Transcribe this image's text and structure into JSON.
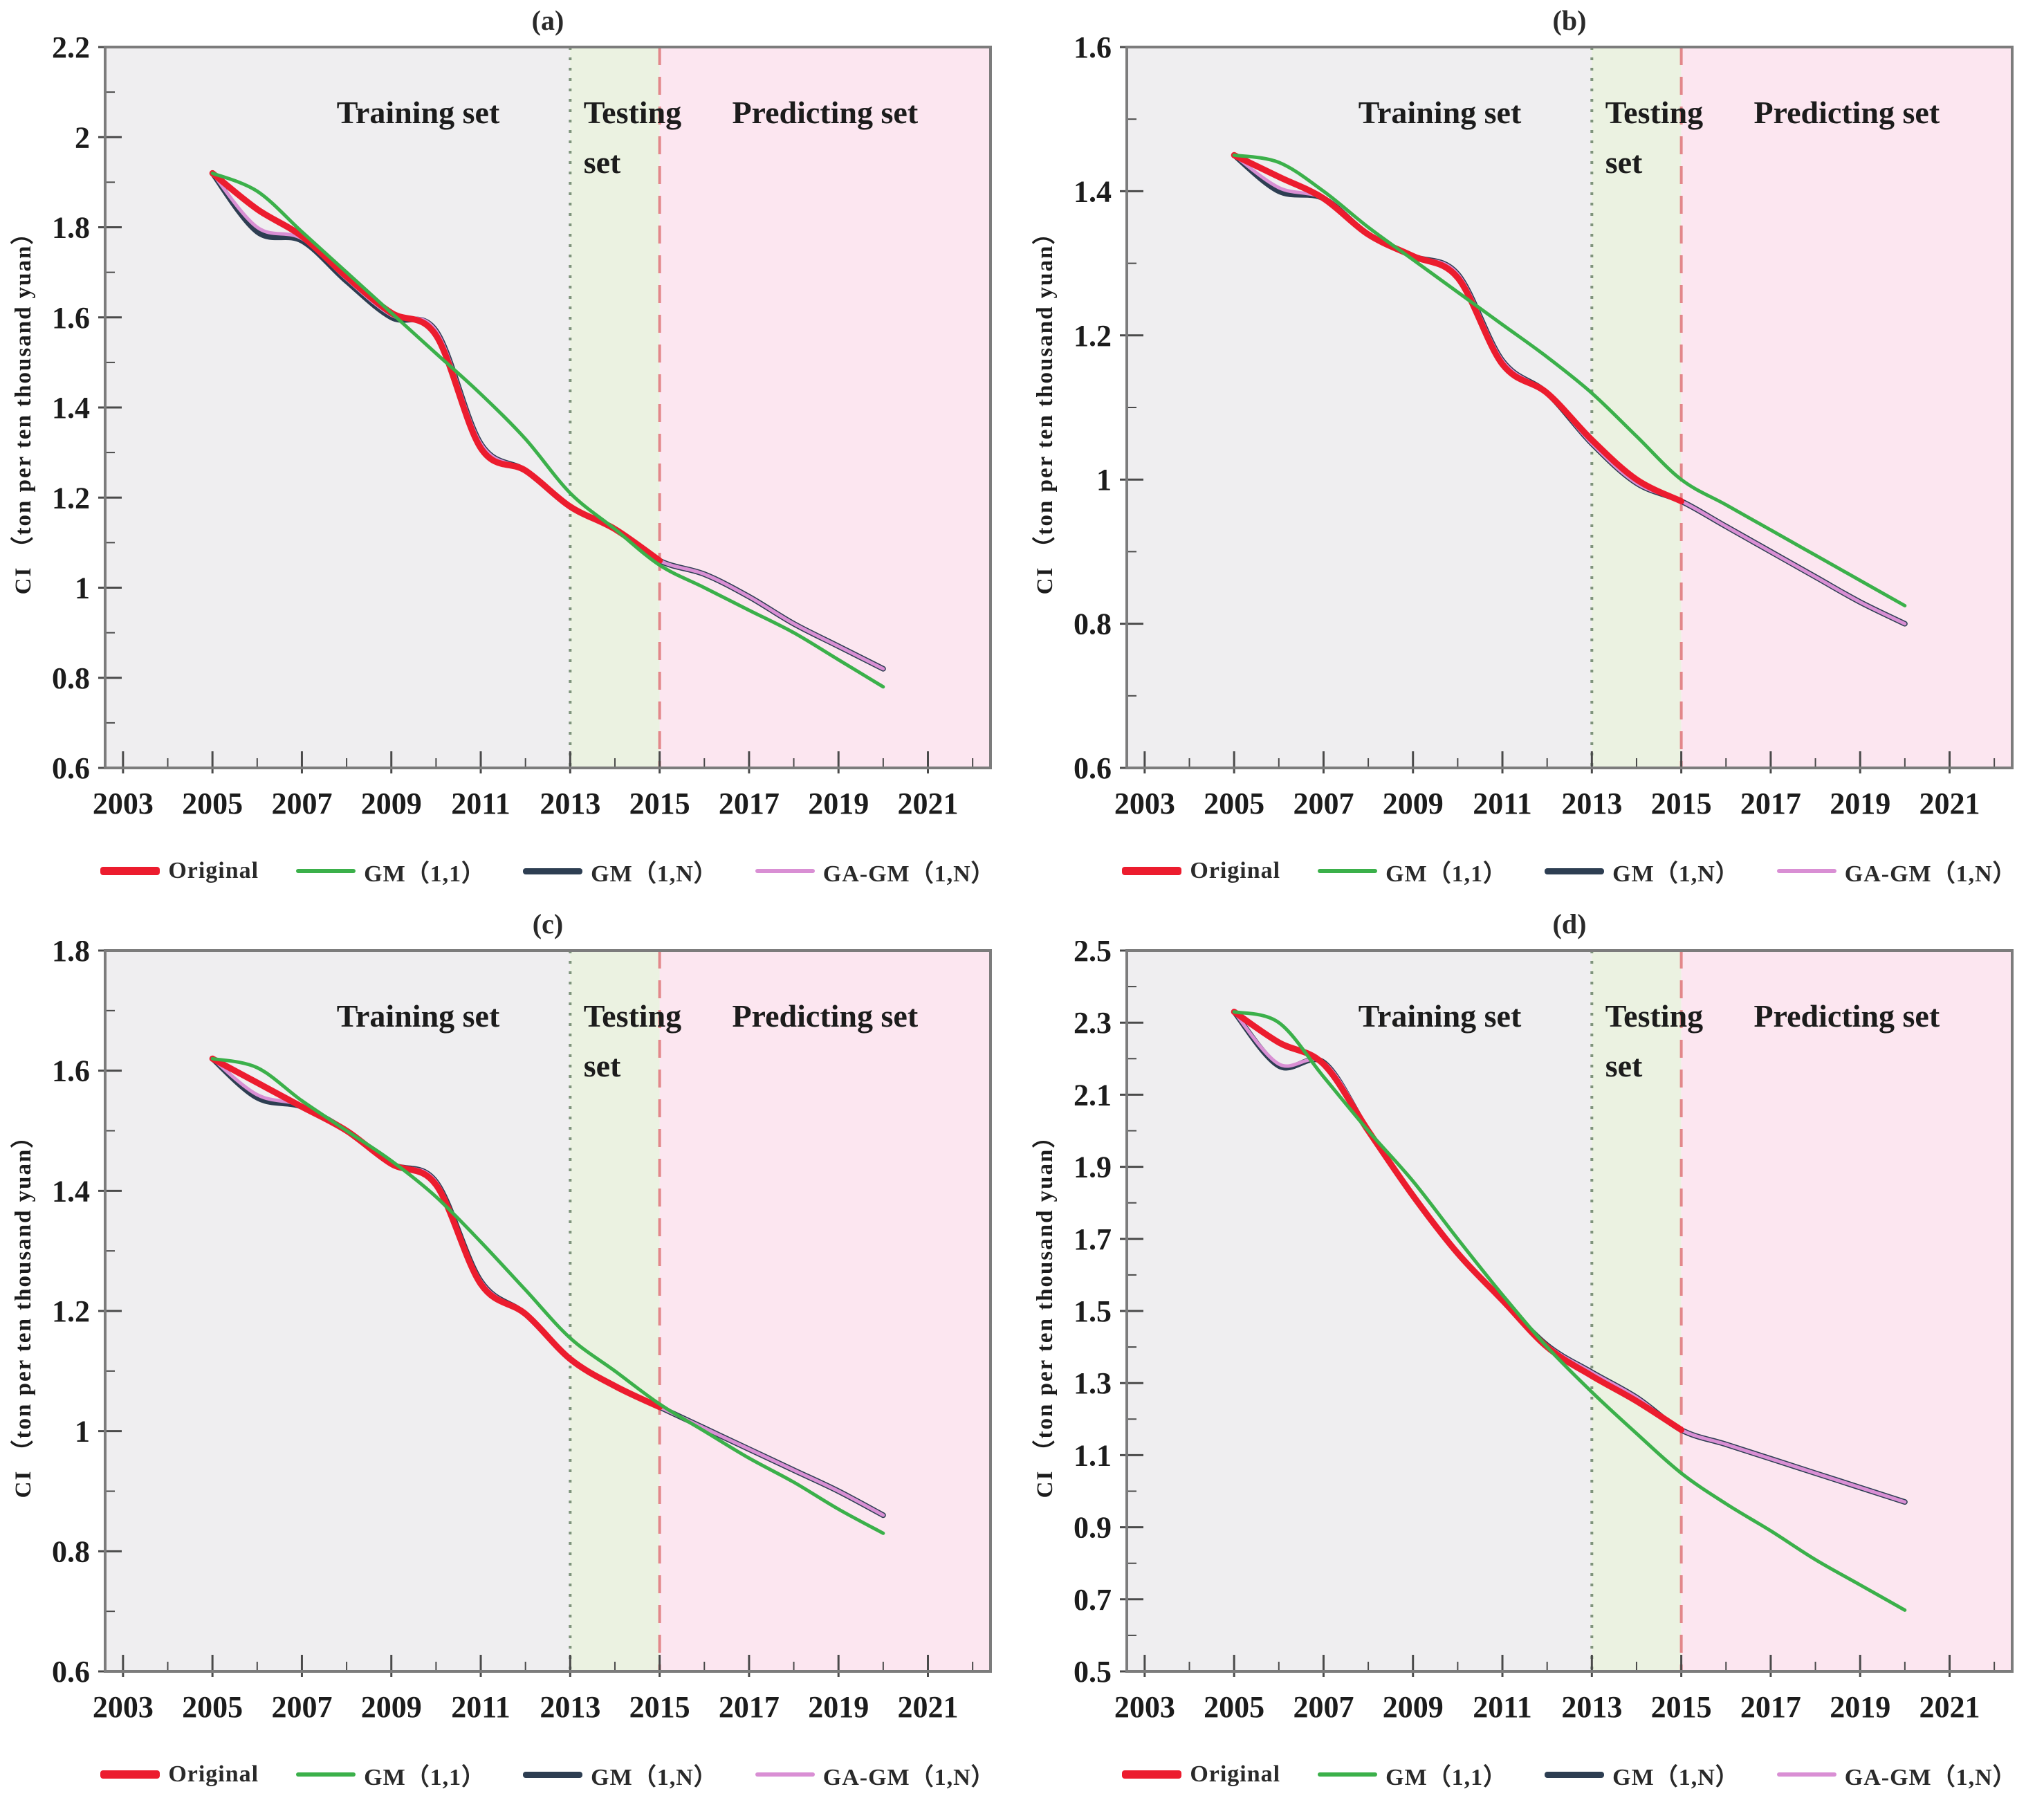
{
  "figure": {
    "region_labels": {
      "training": "Training set",
      "testing": [
        "Testing",
        "set"
      ],
      "predicting": "Predicting set"
    },
    "colors": {
      "plot_border": "#7c7c7c",
      "tick": "#4a4a4a",
      "text": "#1c1c1c",
      "region_training": "#efeef0",
      "region_testing": "#ebf2e1",
      "region_predicting": "#fce6f0",
      "divider_testing": "#7f947c",
      "divider_predicting": "#e2878a",
      "series_original": "#ec1c2e",
      "series_gm11": "#3bb04a",
      "series_gm1n": "#2d3e52",
      "series_gagm1n": "#d98fd4"
    }
  },
  "chart_data": [
    {
      "type": "line",
      "title": "(a)",
      "xlabel": "",
      "ylabel": "CI （ton per ten thousand yuan）",
      "xlim": [
        2002.6,
        2022.4
      ],
      "ylim": [
        0.6,
        2.2
      ],
      "y_major_step": 0.2,
      "y_minor_step": 0.1,
      "x_tick_labels": [
        "2003",
        "2005",
        "2007",
        "2009",
        "2011",
        "2013",
        "2015",
        "2017",
        "2019",
        "2021"
      ],
      "grid": false,
      "legend_position": "bottom",
      "regions": [
        {
          "name": "training",
          "from": 2002.6,
          "to": 2013,
          "label": "Training set",
          "label_x": 2009.6,
          "label_align": "middle"
        },
        {
          "name": "testing",
          "from": 2013,
          "to": 2015,
          "label_lines": [
            "Testing",
            "set"
          ],
          "label_x": 2013.3,
          "label_align": "start"
        },
        {
          "name": "predicting",
          "from": 2015,
          "to": 2022.4,
          "label": "Predicting set",
          "label_x": 2018.7,
          "label_align": "middle"
        }
      ],
      "dividers": [
        {
          "x": 2013,
          "style": "dotted"
        },
        {
          "x": 2015,
          "style": "dashed"
        }
      ],
      "x": [
        2005,
        2006,
        2007,
        2008,
        2009,
        2010,
        2011,
        2012,
        2013,
        2014,
        2015,
        2016,
        2017,
        2018,
        2019,
        2020
      ],
      "series": [
        {
          "key": "original",
          "name": "Original",
          "z": 3,
          "width": 9,
          "values": [
            1.92,
            1.84,
            1.78,
            1.69,
            1.61,
            1.56,
            1.31,
            1.26,
            1.18,
            1.13,
            1.06
          ]
        },
        {
          "key": "gm11",
          "name": "GM（1,1）",
          "z": 4,
          "width": 5,
          "values": [
            1.92,
            1.88,
            1.79,
            1.7,
            1.61,
            1.52,
            1.43,
            1.33,
            1.21,
            1.13,
            1.05,
            1.0,
            0.95,
            0.9,
            0.84,
            0.78
          ]
        },
        {
          "key": "gm1n",
          "name": "GM（1,N）",
          "z": 1,
          "width": 8,
          "values": [
            1.92,
            1.79,
            1.77,
            1.68,
            1.6,
            1.57,
            1.32,
            1.26,
            1.18,
            1.13,
            1.06,
            1.03,
            0.98,
            0.92,
            0.87,
            0.82
          ]
        },
        {
          "key": "gagm1n",
          "name": "GA-GM（1,N）",
          "z": 2,
          "width": 5,
          "values": [
            1.92,
            1.8,
            1.775,
            1.685,
            1.605,
            1.57,
            1.32,
            1.26,
            1.18,
            1.13,
            1.06,
            1.03,
            0.98,
            0.92,
            0.87,
            0.82
          ]
        }
      ]
    },
    {
      "type": "line",
      "title": "(b)",
      "xlabel": "",
      "ylabel": "CI （ton per ten thousand yuan）",
      "xlim": [
        2002.6,
        2022.4
      ],
      "ylim": [
        0.6,
        1.6
      ],
      "y_major_step": 0.2,
      "y_minor_step": 0.1,
      "x_tick_labels": [
        "2003",
        "2005",
        "2007",
        "2009",
        "2011",
        "2013",
        "2015",
        "2017",
        "2019",
        "2021"
      ],
      "grid": false,
      "legend_position": "bottom",
      "regions": [
        {
          "name": "training",
          "from": 2002.6,
          "to": 2013,
          "label": "Training set",
          "label_x": 2009.6,
          "label_align": "middle"
        },
        {
          "name": "testing",
          "from": 2013,
          "to": 2015,
          "label_lines": [
            "Testing",
            "set"
          ],
          "label_x": 2013.3,
          "label_align": "start"
        },
        {
          "name": "predicting",
          "from": 2015,
          "to": 2022.4,
          "label": "Predicting set",
          "label_x": 2018.7,
          "label_align": "middle"
        }
      ],
      "dividers": [
        {
          "x": 2013,
          "style": "dotted"
        },
        {
          "x": 2015,
          "style": "dashed"
        }
      ],
      "x": [
        2005,
        2006,
        2007,
        2008,
        2009,
        2010,
        2011,
        2012,
        2013,
        2014,
        2015,
        2016,
        2017,
        2018,
        2019,
        2020
      ],
      "series": [
        {
          "key": "original",
          "name": "Original",
          "z": 3,
          "width": 9,
          "values": [
            1.45,
            1.42,
            1.39,
            1.34,
            1.31,
            1.28,
            1.16,
            1.12,
            1.055,
            1.0,
            0.97
          ]
        },
        {
          "key": "gm11",
          "name": "GM（1,1）",
          "z": 4,
          "width": 5,
          "values": [
            1.45,
            1.44,
            1.4,
            1.35,
            1.305,
            1.26,
            1.215,
            1.17,
            1.12,
            1.06,
            1.0,
            0.965,
            0.93,
            0.895,
            0.86,
            0.825
          ]
        },
        {
          "key": "gm1n",
          "name": "GM（1,N）",
          "z": 1,
          "width": 8,
          "values": [
            1.45,
            1.4,
            1.39,
            1.34,
            1.31,
            1.285,
            1.165,
            1.12,
            1.05,
            0.995,
            0.97,
            0.935,
            0.9,
            0.865,
            0.83,
            0.8
          ]
        },
        {
          "key": "gagm1n",
          "name": "GA-GM（1,N）",
          "z": 2,
          "width": 5,
          "values": [
            1.45,
            1.405,
            1.39,
            1.34,
            1.31,
            1.285,
            1.165,
            1.12,
            1.05,
            0.995,
            0.97,
            0.935,
            0.9,
            0.865,
            0.83,
            0.8
          ]
        }
      ]
    },
    {
      "type": "line",
      "title": "(c)",
      "xlabel": "",
      "ylabel": "CI （ton per ten thousand yuan）",
      "xlim": [
        2002.6,
        2022.4
      ],
      "ylim": [
        0.6,
        1.8
      ],
      "y_major_step": 0.2,
      "y_minor_step": 0.1,
      "x_tick_labels": [
        "2003",
        "2005",
        "2007",
        "2009",
        "2011",
        "2013",
        "2015",
        "2017",
        "2019",
        "2021"
      ],
      "grid": false,
      "legend_position": "bottom",
      "regions": [
        {
          "name": "training",
          "from": 2002.6,
          "to": 2013,
          "label": "Training set",
          "label_x": 2009.6,
          "label_align": "middle"
        },
        {
          "name": "testing",
          "from": 2013,
          "to": 2015,
          "label_lines": [
            "Testing",
            "set"
          ],
          "label_x": 2013.3,
          "label_align": "start"
        },
        {
          "name": "predicting",
          "from": 2015,
          "to": 2022.4,
          "label": "Predicting set",
          "label_x": 2018.7,
          "label_align": "middle"
        }
      ],
      "dividers": [
        {
          "x": 2013,
          "style": "dotted"
        },
        {
          "x": 2015,
          "style": "dashed"
        }
      ],
      "x": [
        2005,
        2006,
        2007,
        2008,
        2009,
        2010,
        2011,
        2012,
        2013,
        2014,
        2015,
        2016,
        2017,
        2018,
        2019,
        2020
      ],
      "series": [
        {
          "key": "original",
          "name": "Original",
          "z": 3,
          "width": 9,
          "values": [
            1.62,
            1.58,
            1.54,
            1.5,
            1.445,
            1.41,
            1.245,
            1.195,
            1.12,
            1.075,
            1.04
          ]
        },
        {
          "key": "gm11",
          "name": "GM（1,1）",
          "z": 4,
          "width": 5,
          "values": [
            1.62,
            1.605,
            1.55,
            1.5,
            1.45,
            1.39,
            1.315,
            1.235,
            1.155,
            1.1,
            1.045,
            1.0,
            0.955,
            0.915,
            0.87,
            0.83
          ]
        },
        {
          "key": "gm1n",
          "name": "GM（1,N）",
          "z": 1,
          "width": 8,
          "values": [
            1.62,
            1.555,
            1.54,
            1.5,
            1.445,
            1.415,
            1.25,
            1.195,
            1.12,
            1.075,
            1.04,
            1.005,
            0.97,
            0.935,
            0.9,
            0.86
          ]
        },
        {
          "key": "gagm1n",
          "name": "GA-GM（1,N）",
          "z": 2,
          "width": 5,
          "values": [
            1.62,
            1.56,
            1.542,
            1.5,
            1.445,
            1.415,
            1.25,
            1.195,
            1.12,
            1.075,
            1.04,
            1.005,
            0.97,
            0.935,
            0.9,
            0.86
          ]
        }
      ]
    },
    {
      "type": "line",
      "title": "(d)",
      "xlabel": "",
      "ylabel": "CI （ton per ten thousand yuan）",
      "xlim": [
        2002.6,
        2022.4
      ],
      "ylim": [
        0.5,
        2.5
      ],
      "y_major_step": 0.2,
      "y_minor_step": 0.1,
      "x_tick_labels": [
        "2003",
        "2005",
        "2007",
        "2009",
        "2011",
        "2013",
        "2015",
        "2017",
        "2019",
        "2021"
      ],
      "grid": false,
      "legend_position": "bottom",
      "regions": [
        {
          "name": "training",
          "from": 2002.6,
          "to": 2013,
          "label": "Training set",
          "label_x": 2009.6,
          "label_align": "middle"
        },
        {
          "name": "testing",
          "from": 2013,
          "to": 2015,
          "label_lines": [
            "Testing",
            "set"
          ],
          "label_x": 2013.3,
          "label_align": "start"
        },
        {
          "name": "predicting",
          "from": 2015,
          "to": 2022.4,
          "label": "Predicting set",
          "label_x": 2018.7,
          "label_align": "middle"
        }
      ],
      "dividers": [
        {
          "x": 2013,
          "style": "dotted"
        },
        {
          "x": 2015,
          "style": "dashed"
        }
      ],
      "x": [
        2005,
        2006,
        2007,
        2008,
        2009,
        2010,
        2011,
        2012,
        2013,
        2014,
        2015,
        2016,
        2017,
        2018,
        2019,
        2020
      ],
      "series": [
        {
          "key": "original",
          "name": "Original",
          "z": 3,
          "width": 9,
          "values": [
            2.33,
            2.245,
            2.185,
            2.0,
            1.82,
            1.66,
            1.53,
            1.4,
            1.32,
            1.25,
            1.17
          ]
        },
        {
          "key": "gm11",
          "name": "GM（1,1）",
          "z": 4,
          "width": 5,
          "values": [
            2.33,
            2.3,
            2.15,
            2.0,
            1.86,
            1.7,
            1.545,
            1.4,
            1.275,
            1.16,
            1.05,
            0.965,
            0.89,
            0.81,
            0.74,
            0.67
          ]
        },
        {
          "key": "gm1n",
          "name": "GM（1,N）",
          "z": 1,
          "width": 8,
          "values": [
            2.33,
            2.18,
            2.19,
            2.0,
            1.82,
            1.66,
            1.53,
            1.405,
            1.33,
            1.26,
            1.17,
            1.13,
            1.09,
            1.05,
            1.01,
            0.97
          ]
        },
        {
          "key": "gagm1n",
          "name": "GA-GM（1,N）",
          "z": 2,
          "width": 5,
          "values": [
            2.33,
            2.185,
            2.19,
            2.005,
            1.82,
            1.66,
            1.53,
            1.405,
            1.33,
            1.26,
            1.17,
            1.13,
            1.09,
            1.05,
            1.01,
            0.97
          ]
        }
      ]
    }
  ]
}
